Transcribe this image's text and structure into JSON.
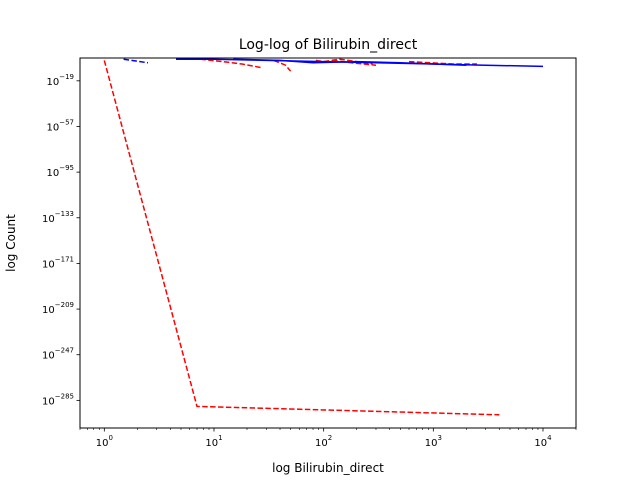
{
  "chart_data": {
    "type": "line",
    "title": "Log-log of Bilirubin_direct",
    "xlabel": "log Bilirubin_direct",
    "ylabel": "log Count",
    "xscale": "log",
    "yscale": "log",
    "xlim": [
      0.6,
      20000
    ],
    "ylim_exponent": [
      -308,
      0
    ],
    "x_ticks": [
      {
        "value": 1,
        "base": "10",
        "exp": "0"
      },
      {
        "value": 10,
        "base": "10",
        "exp": "1"
      },
      {
        "value": 100,
        "base": "10",
        "exp": "2"
      },
      {
        "value": 1000,
        "base": "10",
        "exp": "3"
      },
      {
        "value": 10000,
        "base": "10",
        "exp": "4"
      }
    ],
    "y_ticks": [
      {
        "exp_value": -19,
        "base": "10",
        "exp": "−19"
      },
      {
        "exp_value": -57,
        "base": "10",
        "exp": "−57"
      },
      {
        "exp_value": -95,
        "base": "10",
        "exp": "−95"
      },
      {
        "exp_value": -133,
        "base": "10",
        "exp": "−133"
      },
      {
        "exp_value": -171,
        "base": "10",
        "exp": "−171"
      },
      {
        "exp_value": -209,
        "base": "10",
        "exp": "−209"
      },
      {
        "exp_value": -247,
        "base": "10",
        "exp": "−247"
      },
      {
        "exp_value": -285,
        "base": "10",
        "exp": "−285"
      }
    ],
    "grid": false,
    "series": [
      {
        "color": "#ff0000",
        "style": "dashed",
        "points": [
          [
            1,
            -2
          ],
          [
            7,
            -290
          ],
          [
            4000,
            -297
          ]
        ]
      },
      {
        "color": "#ff0000",
        "style": "dashed",
        "points": [
          [
            7.5,
            -1
          ],
          [
            12,
            -3
          ],
          [
            18,
            -5
          ],
          [
            27,
            -8
          ]
        ]
      },
      {
        "color": "#ff0000",
        "style": "dashed",
        "points": [
          [
            35,
            -2
          ],
          [
            45,
            -6
          ],
          [
            50,
            -11
          ]
        ]
      },
      {
        "color": "#ff0000",
        "style": "dashed",
        "points": [
          [
            85,
            -2
          ],
          [
            100,
            -3
          ],
          [
            140,
            -1
          ],
          [
            200,
            -3
          ],
          [
            280,
            -5
          ]
        ]
      },
      {
        "color": "#ff0000",
        "style": "dashed",
        "points": [
          [
            120,
            -2
          ],
          [
            180,
            -4
          ],
          [
            300,
            -6
          ]
        ]
      },
      {
        "color": "#ff0000",
        "style": "dashed",
        "points": [
          [
            600,
            -3
          ],
          [
            1500,
            -5
          ],
          [
            2500,
            -5
          ]
        ]
      },
      {
        "color": "#0000ff",
        "style": "dashed",
        "points": [
          [
            1.5,
            -1
          ],
          [
            2.5,
            -4
          ]
        ]
      },
      {
        "color": "#0000ff",
        "style": "solid",
        "points": [
          [
            4.5,
            -1
          ],
          [
            10,
            -1
          ],
          [
            30,
            -2
          ],
          [
            100,
            -3
          ],
          [
            300,
            -4
          ],
          [
            1000,
            -5
          ],
          [
            3000,
            -6
          ],
          [
            10000,
            -7
          ]
        ]
      },
      {
        "color": "#0000ff",
        "style": "solid",
        "points": [
          [
            15,
            -1
          ],
          [
            40,
            -2
          ],
          [
            80,
            -4
          ],
          [
            200,
            -3
          ],
          [
            500,
            -4
          ],
          [
            2000,
            -6
          ]
        ]
      }
    ]
  }
}
